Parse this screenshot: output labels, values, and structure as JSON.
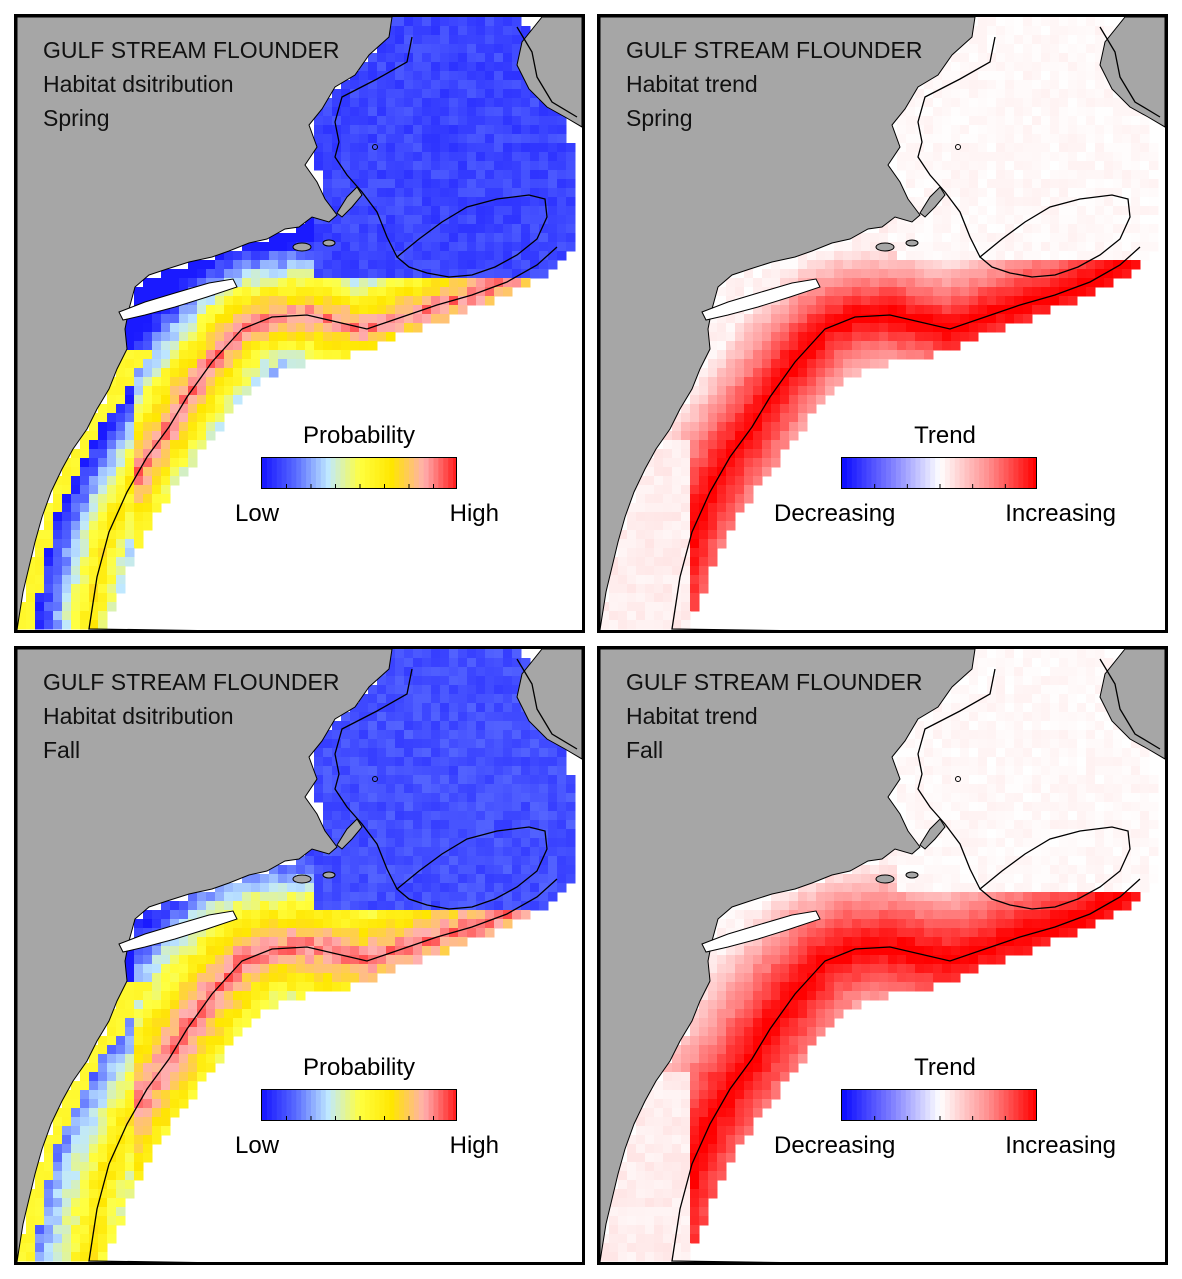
{
  "colors": {
    "land": "#a6a6a6",
    "probability_scale": [
      "#1a1aff",
      "#5a6cff",
      "#bfe8ff",
      "#ffff40",
      "#ffe600",
      "#ffb0b0",
      "#ff2020"
    ],
    "trend_scale": [
      "#1010ff",
      "#8080ff",
      "#ffffff",
      "#ff9090",
      "#ff0000"
    ]
  },
  "panels": [
    {
      "species": "GULF STREAM FLOUNDER",
      "metric": "Habitat dsitribution",
      "season": "Spring",
      "legend": {
        "title": "Probability",
        "low": "Low",
        "high": "High",
        "type": "probability"
      }
    },
    {
      "species": "GULF STREAM FLOUNDER",
      "metric": "Habitat trend",
      "season": "Spring",
      "legend": {
        "title": "Trend",
        "low": "Decreasing",
        "high": "Increasing",
        "type": "trend"
      }
    },
    {
      "species": "GULF STREAM FLOUNDER",
      "metric": "Habitat dsitribution",
      "season": "Fall",
      "legend": {
        "title": "Probability",
        "low": "Low",
        "high": "High",
        "type": "probability"
      }
    },
    {
      "species": "GULF STREAM FLOUNDER",
      "metric": "Habitat trend",
      "season": "Fall",
      "legend": {
        "title": "Trend",
        "low": "Decreasing",
        "high": "Increasing",
        "type": "trend"
      }
    }
  ]
}
